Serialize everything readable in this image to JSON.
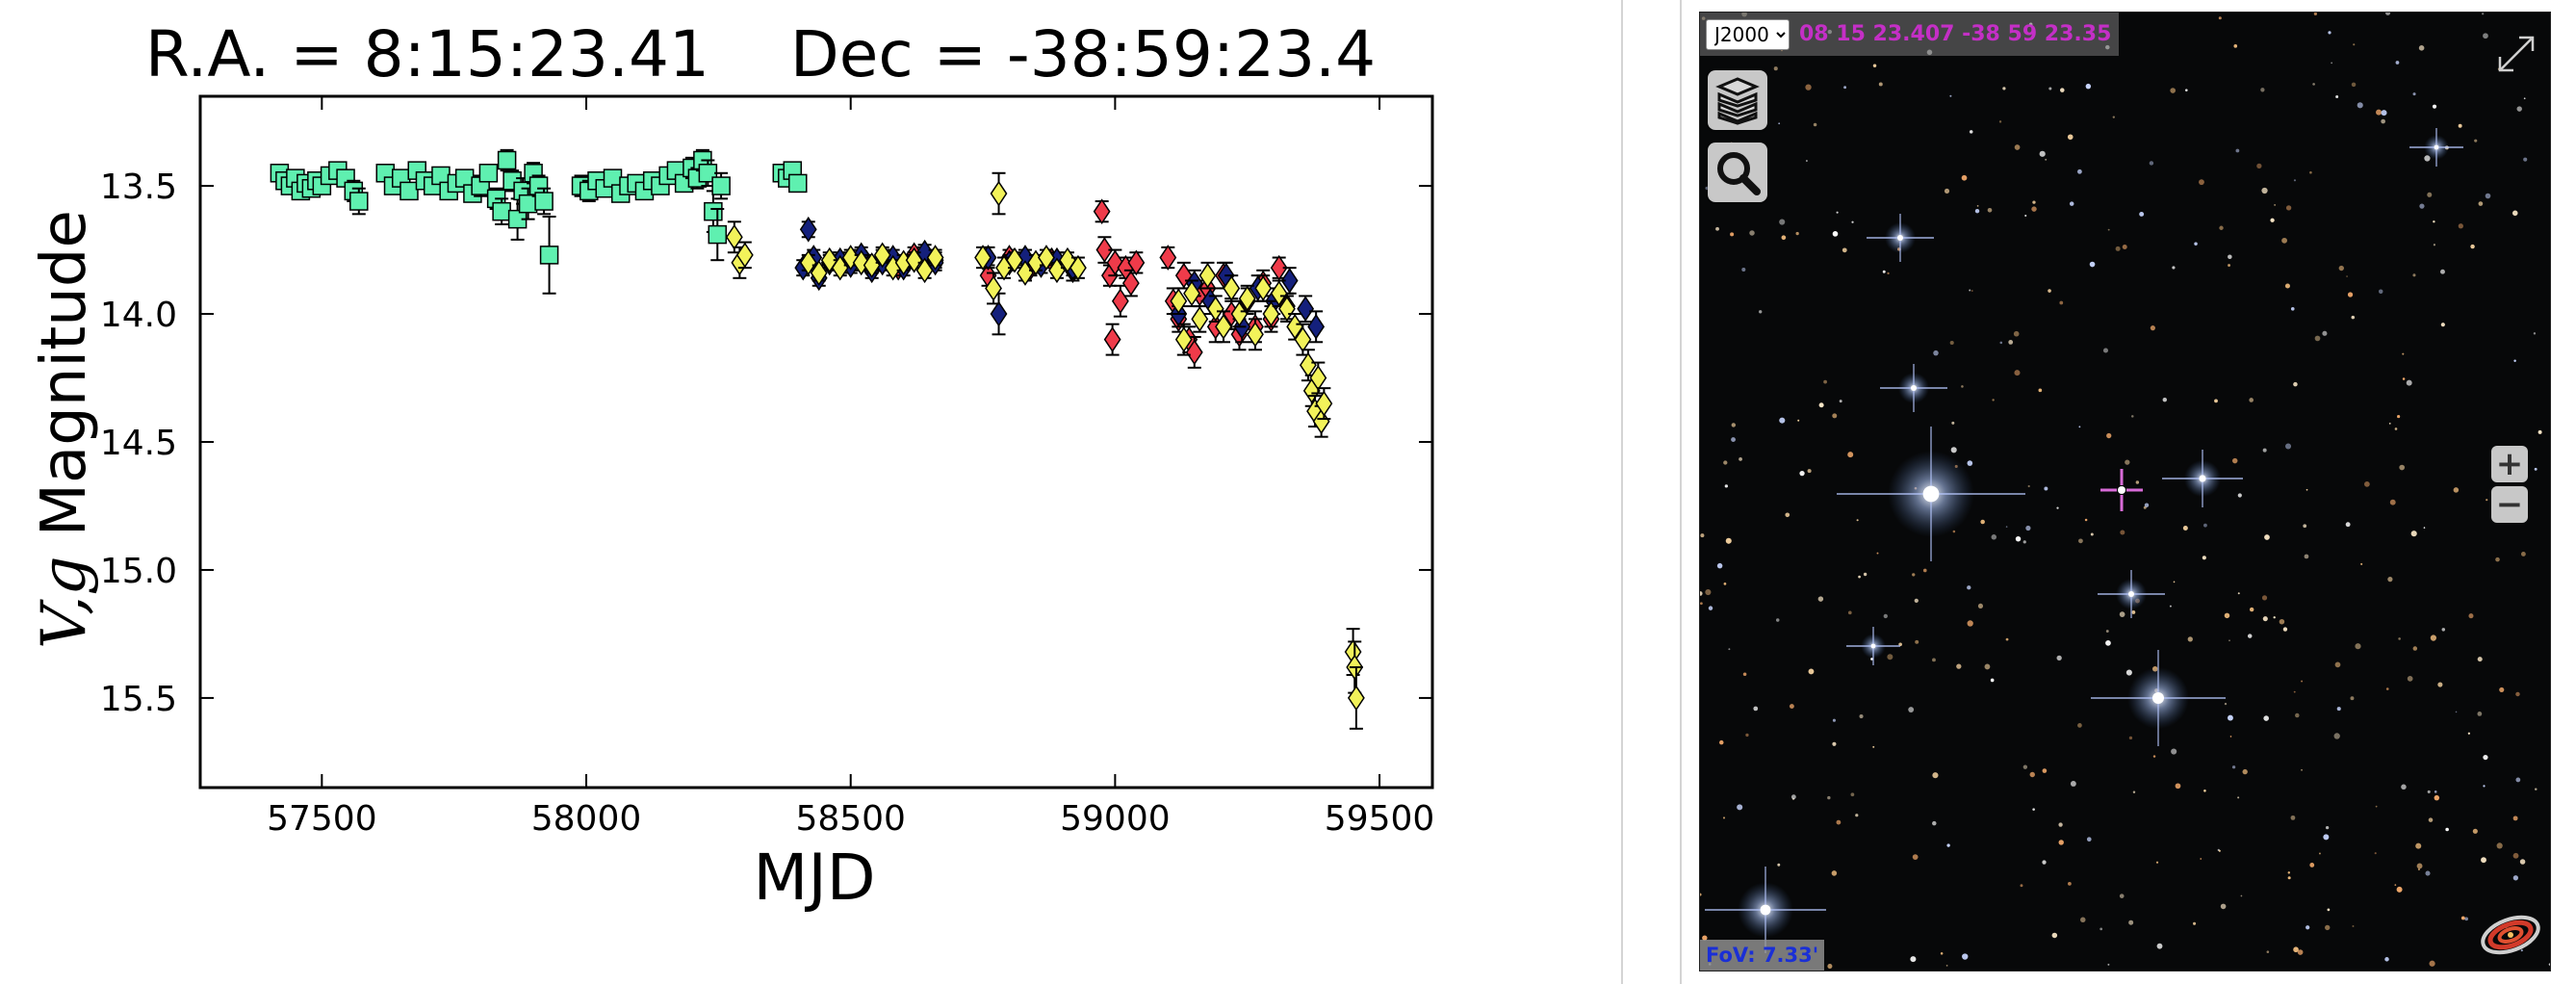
{
  "chart_data": {
    "type": "scatter",
    "title": "R.A. = 8:15:23.41    Dec = -38:59:23.4",
    "xlabel": "MJD",
    "ylabel_main": "V,g",
    "ylabel_suffix": " Magnitude",
    "xlim": [
      57270,
      59600
    ],
    "ylim": [
      15.85,
      13.15
    ],
    "y_inverted": true,
    "xticks": [
      57500,
      58000,
      58500,
      59000,
      59500
    ],
    "xtick_labels": [
      "57500",
      "58000",
      "58500",
      "59000",
      "59500"
    ],
    "yticks": [
      13.5,
      14.0,
      14.5,
      15.0,
      15.5
    ],
    "ytick_labels": [
      "13.5",
      "14.0",
      "14.5",
      "15.0",
      "15.5"
    ],
    "grid": false,
    "series": [
      {
        "marker": "square",
        "color": "#5ff0b0",
        "points": [
          [
            57420,
            13.45,
            0.03
          ],
          [
            57430,
            13.48,
            0.03
          ],
          [
            57440,
            13.5,
            0.03
          ],
          [
            57450,
            13.47,
            0.03
          ],
          [
            57460,
            13.52,
            0.03
          ],
          [
            57470,
            13.49,
            0.03
          ],
          [
            57480,
            13.51,
            0.03
          ],
          [
            57490,
            13.48,
            0.03
          ],
          [
            57500,
            13.5,
            0.03
          ],
          [
            57515,
            13.46,
            0.03
          ],
          [
            57530,
            13.44,
            0.03
          ],
          [
            57545,
            13.47,
            0.03
          ],
          [
            57560,
            13.52,
            0.04
          ],
          [
            57570,
            13.56,
            0.05
          ],
          [
            57620,
            13.45,
            0.03
          ],
          [
            57635,
            13.5,
            0.03
          ],
          [
            57650,
            13.47,
            0.03
          ],
          [
            57665,
            13.52,
            0.03
          ],
          [
            57680,
            13.44,
            0.03
          ],
          [
            57695,
            13.48,
            0.03
          ],
          [
            57710,
            13.5,
            0.03
          ],
          [
            57725,
            13.46,
            0.03
          ],
          [
            57740,
            13.52,
            0.03
          ],
          [
            57755,
            13.49,
            0.03
          ],
          [
            57770,
            13.47,
            0.03
          ],
          [
            57785,
            13.53,
            0.03
          ],
          [
            57800,
            13.5,
            0.04
          ],
          [
            57815,
            13.45,
            0.03
          ],
          [
            57830,
            13.55,
            0.04
          ],
          [
            57840,
            13.6,
            0.05
          ],
          [
            57850,
            13.4,
            0.04
          ],
          [
            57860,
            13.48,
            0.04
          ],
          [
            57870,
            13.63,
            0.08
          ],
          [
            57880,
            13.52,
            0.05
          ],
          [
            57890,
            13.57,
            0.06
          ],
          [
            57900,
            13.45,
            0.04
          ],
          [
            57910,
            13.5,
            0.04
          ],
          [
            57920,
            13.56,
            0.05
          ],
          [
            57930,
            13.77,
            0.15
          ],
          [
            57990,
            13.5,
            0.04
          ],
          [
            58005,
            13.52,
            0.04
          ],
          [
            58020,
            13.48,
            0.03
          ],
          [
            58035,
            13.51,
            0.03
          ],
          [
            58050,
            13.47,
            0.03
          ],
          [
            58065,
            13.53,
            0.03
          ],
          [
            58080,
            13.5,
            0.03
          ],
          [
            58095,
            13.49,
            0.03
          ],
          [
            58110,
            13.52,
            0.03
          ],
          [
            58125,
            13.48,
            0.03
          ],
          [
            58140,
            13.5,
            0.03
          ],
          [
            58155,
            13.46,
            0.03
          ],
          [
            58170,
            13.44,
            0.03
          ],
          [
            58185,
            13.49,
            0.03
          ],
          [
            58200,
            13.43,
            0.04
          ],
          [
            58210,
            13.47,
            0.04
          ],
          [
            58220,
            13.4,
            0.04
          ],
          [
            58230,
            13.45,
            0.05
          ],
          [
            58240,
            13.6,
            0.08
          ],
          [
            58248,
            13.69,
            0.1
          ],
          [
            58255,
            13.5,
            0.05
          ],
          [
            58370,
            13.45,
            0.03
          ],
          [
            58380,
            13.47,
            0.03
          ],
          [
            58390,
            13.44,
            0.03
          ],
          [
            58400,
            13.49,
            0.03
          ]
        ]
      },
      {
        "marker": "diamond",
        "color": "#ef3b4a",
        "points": [
          [
            58530,
            13.8,
            0.03
          ],
          [
            58560,
            13.78,
            0.03
          ],
          [
            58590,
            13.82,
            0.03
          ],
          [
            58620,
            13.77,
            0.03
          ],
          [
            58660,
            13.79,
            0.03
          ],
          [
            58760,
            13.85,
            0.04
          ],
          [
            58800,
            13.78,
            0.03
          ],
          [
            58840,
            13.82,
            0.03
          ],
          [
            58880,
            13.79,
            0.03
          ],
          [
            58920,
            13.83,
            0.04
          ],
          [
            58975,
            13.6,
            0.04
          ],
          [
            58980,
            13.75,
            0.05
          ],
          [
            58990,
            13.85,
            0.04
          ],
          [
            58995,
            14.1,
            0.06
          ],
          [
            59000,
            13.8,
            0.05
          ],
          [
            59010,
            13.95,
            0.06
          ],
          [
            59020,
            13.82,
            0.04
          ],
          [
            59030,
            13.88,
            0.05
          ],
          [
            59040,
            13.8,
            0.04
          ],
          [
            59100,
            13.78,
            0.04
          ],
          [
            59110,
            13.95,
            0.05
          ],
          [
            59120,
            14.02,
            0.05
          ],
          [
            59130,
            13.85,
            0.05
          ],
          [
            59140,
            14.1,
            0.05
          ],
          [
            59150,
            14.15,
            0.06
          ],
          [
            59160,
            13.92,
            0.05
          ],
          [
            59175,
            13.9,
            0.05
          ],
          [
            59190,
            14.05,
            0.06
          ],
          [
            59205,
            13.85,
            0.05
          ],
          [
            59220,
            14.0,
            0.06
          ],
          [
            59235,
            14.08,
            0.06
          ],
          [
            59250,
            13.95,
            0.05
          ],
          [
            59265,
            14.05,
            0.06
          ],
          [
            59280,
            13.88,
            0.05
          ],
          [
            59295,
            14.02,
            0.05
          ],
          [
            59310,
            13.82,
            0.04
          ],
          [
            59325,
            13.97,
            0.05
          ]
        ]
      },
      {
        "marker": "diamond",
        "color": "#14207c",
        "points": [
          [
            58410,
            13.82,
            0.03
          ],
          [
            58420,
            13.67,
            0.03
          ],
          [
            58430,
            13.78,
            0.03
          ],
          [
            58440,
            13.86,
            0.03
          ],
          [
            58460,
            13.8,
            0.03
          ],
          [
            58480,
            13.79,
            0.03
          ],
          [
            58500,
            13.81,
            0.03
          ],
          [
            58520,
            13.77,
            0.03
          ],
          [
            58540,
            13.83,
            0.03
          ],
          [
            58560,
            13.8,
            0.03
          ],
          [
            58580,
            13.78,
            0.03
          ],
          [
            58600,
            13.82,
            0.03
          ],
          [
            58620,
            13.79,
            0.03
          ],
          [
            58640,
            13.76,
            0.03
          ],
          [
            58660,
            13.8,
            0.03
          ],
          [
            58760,
            13.78,
            0.04
          ],
          [
            58780,
            14.0,
            0.08
          ],
          [
            58800,
            13.8,
            0.03
          ],
          [
            58830,
            13.78,
            0.03
          ],
          [
            58860,
            13.81,
            0.03
          ],
          [
            58890,
            13.79,
            0.03
          ],
          [
            58920,
            13.82,
            0.03
          ],
          [
            59120,
            14.0,
            0.05
          ],
          [
            59150,
            13.88,
            0.05
          ],
          [
            59180,
            13.95,
            0.05
          ],
          [
            59210,
            13.85,
            0.05
          ],
          [
            59240,
            14.05,
            0.06
          ],
          [
            59270,
            13.9,
            0.05
          ],
          [
            59300,
            13.95,
            0.05
          ],
          [
            59330,
            13.87,
            0.05
          ],
          [
            59360,
            13.98,
            0.05
          ],
          [
            59380,
            14.05,
            0.06
          ]
        ]
      },
      {
        "marker": "diamond",
        "color": "#f2f25a",
        "points": [
          [
            58280,
            13.7,
            0.06
          ],
          [
            58290,
            13.8,
            0.06
          ],
          [
            58300,
            13.77,
            0.05
          ],
          [
            58420,
            13.8,
            0.03
          ],
          [
            58440,
            13.84,
            0.03
          ],
          [
            58460,
            13.79,
            0.03
          ],
          [
            58480,
            13.82,
            0.03
          ],
          [
            58500,
            13.78,
            0.03
          ],
          [
            58520,
            13.8,
            0.03
          ],
          [
            58540,
            13.81,
            0.03
          ],
          [
            58560,
            13.77,
            0.03
          ],
          [
            58580,
            13.82,
            0.03
          ],
          [
            58600,
            13.8,
            0.03
          ],
          [
            58620,
            13.79,
            0.03
          ],
          [
            58640,
            13.83,
            0.03
          ],
          [
            58660,
            13.78,
            0.03
          ],
          [
            58750,
            13.78,
            0.04
          ],
          [
            58770,
            13.9,
            0.06
          ],
          [
            58780,
            13.53,
            0.08
          ],
          [
            58790,
            13.82,
            0.04
          ],
          [
            58810,
            13.79,
            0.03
          ],
          [
            58830,
            13.84,
            0.03
          ],
          [
            58850,
            13.8,
            0.03
          ],
          [
            58870,
            13.78,
            0.03
          ],
          [
            58890,
            13.83,
            0.03
          ],
          [
            58910,
            13.79,
            0.03
          ],
          [
            58930,
            13.82,
            0.04
          ],
          [
            59120,
            13.95,
            0.05
          ],
          [
            59130,
            14.1,
            0.06
          ],
          [
            59145,
            13.92,
            0.05
          ],
          [
            59160,
            14.02,
            0.05
          ],
          [
            59175,
            13.85,
            0.05
          ],
          [
            59190,
            13.98,
            0.05
          ],
          [
            59205,
            14.05,
            0.06
          ],
          [
            59220,
            13.9,
            0.05
          ],
          [
            59235,
            14.0,
            0.05
          ],
          [
            59250,
            13.94,
            0.05
          ],
          [
            59265,
            14.08,
            0.06
          ],
          [
            59280,
            13.9,
            0.05
          ],
          [
            59295,
            14.0,
            0.05
          ],
          [
            59310,
            13.92,
            0.05
          ],
          [
            59325,
            13.98,
            0.05
          ],
          [
            59340,
            14.05,
            0.05
          ],
          [
            59355,
            14.1,
            0.06
          ],
          [
            59365,
            14.2,
            0.06
          ],
          [
            59372,
            14.3,
            0.06
          ],
          [
            59378,
            14.38,
            0.06
          ],
          [
            59384,
            14.25,
            0.06
          ],
          [
            59390,
            14.42,
            0.06
          ],
          [
            59395,
            14.35,
            0.06
          ],
          [
            59450,
            15.32,
            0.09
          ],
          [
            59453,
            15.38,
            0.1
          ],
          [
            59456,
            15.5,
            0.12
          ]
        ]
      }
    ]
  },
  "sky_view": {
    "frame_selected": "J2000",
    "frame_options": [
      "J2000"
    ],
    "coordinates": "08 15 23.407 -38 59 23.35",
    "fov": "FoV: 7.33'",
    "zoom_in_label": "+",
    "zoom_out_label": "−",
    "layers_icon": "layers-icon",
    "search_icon": "magnifier-icon",
    "fullscreen_icon": "expand-arrows-icon",
    "logo_icon": "aladin-galaxy-logo",
    "reticle_color": "#d86bd8"
  }
}
